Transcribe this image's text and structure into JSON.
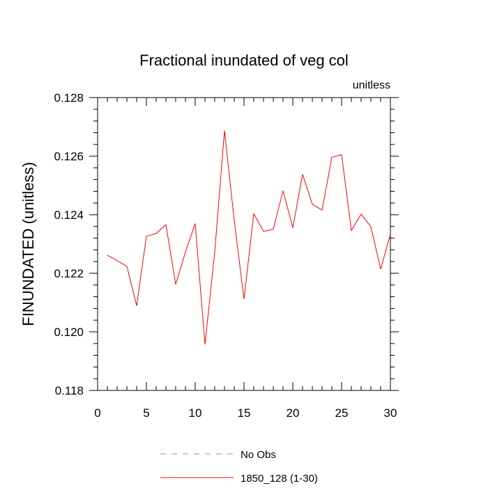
{
  "chart_data": {
    "type": "line",
    "title": "Fractional inundated of veg col",
    "units_label": "unitless",
    "ylabel": "FINUNDATED  (unitless)",
    "xlabel": "",
    "xlim": [
      0,
      30
    ],
    "ylim": [
      0.118,
      0.128
    ],
    "x_ticks": [
      0,
      5,
      10,
      15,
      20,
      25,
      30
    ],
    "x_tick_labels": [
      "0",
      "5",
      "10",
      "15",
      "20",
      "25",
      "30"
    ],
    "y_ticks": [
      0.118,
      0.12,
      0.122,
      0.124,
      0.126,
      0.128
    ],
    "y_tick_labels": [
      "0.118",
      "0.120",
      "0.122",
      "0.124",
      "0.126",
      "0.128"
    ],
    "grid": false,
    "legend_position": "bottom-center",
    "series": [
      {
        "name": "No Obs",
        "color": "#8c8cdc",
        "style": "dashed",
        "x": [],
        "values": []
      },
      {
        "name": "1850_128 (1-30)",
        "color": "#ff0000",
        "style": "solid",
        "x": [
          1,
          2,
          3,
          4,
          5,
          6,
          7,
          8,
          9,
          10,
          11,
          12,
          13,
          14,
          15,
          16,
          17,
          18,
          19,
          20,
          21,
          22,
          23,
          24,
          25,
          26,
          27,
          28,
          29,
          30
        ],
        "values": [
          0.12262,
          0.12243,
          0.12224,
          0.12089,
          0.12326,
          0.12336,
          0.12366,
          0.12162,
          0.12272,
          0.1237,
          0.11957,
          0.12272,
          0.12687,
          0.12381,
          0.12112,
          0.12403,
          0.12343,
          0.1235,
          0.12482,
          0.12355,
          0.12538,
          0.12436,
          0.12416,
          0.12596,
          0.12605,
          0.12346,
          0.12402,
          0.12359,
          0.12214,
          0.12333
        ]
      }
    ]
  }
}
